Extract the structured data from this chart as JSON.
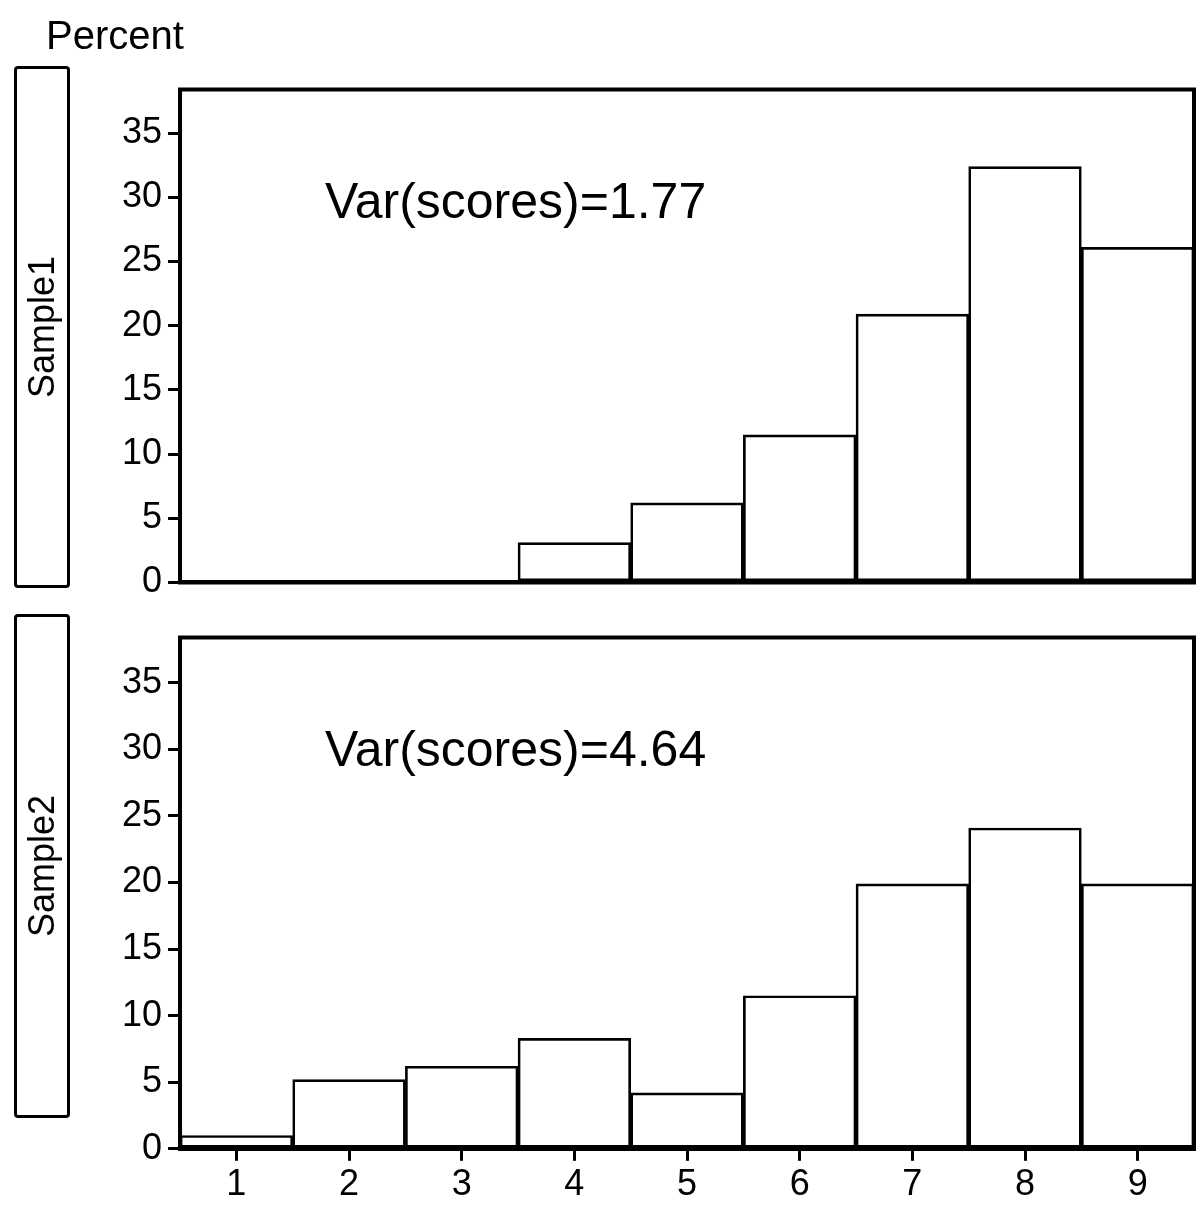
{
  "chart_data": [
    {
      "type": "bar",
      "title": "Sample1",
      "ylabel": "Percent",
      "annotations": [
        "Var(scores)=1.77"
      ],
      "categories": [
        "1",
        "2",
        "3",
        "4",
        "5",
        "6",
        "7",
        "8",
        "9"
      ],
      "values": [
        0,
        0,
        0,
        3.1,
        6.2,
        11.5,
        20.9,
        32.4,
        26.1
      ],
      "color": "#000000",
      "ylim": [
        0,
        38.4
      ],
      "yticks": [
        0,
        5,
        10,
        15,
        20,
        25,
        30,
        35
      ],
      "tick_labels": "y"
    },
    {
      "type": "bar",
      "title": "Sample2",
      "annotations": [
        "Var(scores)=4.64"
      ],
      "categories": [
        "1",
        "2",
        "3",
        "4",
        "5",
        "6",
        "7",
        "8",
        "9"
      ],
      "values": [
        1.0,
        5.2,
        6.2,
        8.3,
        4.2,
        11.5,
        19.9,
        24.1,
        19.9
      ],
      "color": "#000000",
      "ylim": [
        0,
        38.4
      ],
      "yticks": [
        0,
        5,
        10,
        15,
        20,
        25,
        30,
        35
      ]
    }
  ]
}
